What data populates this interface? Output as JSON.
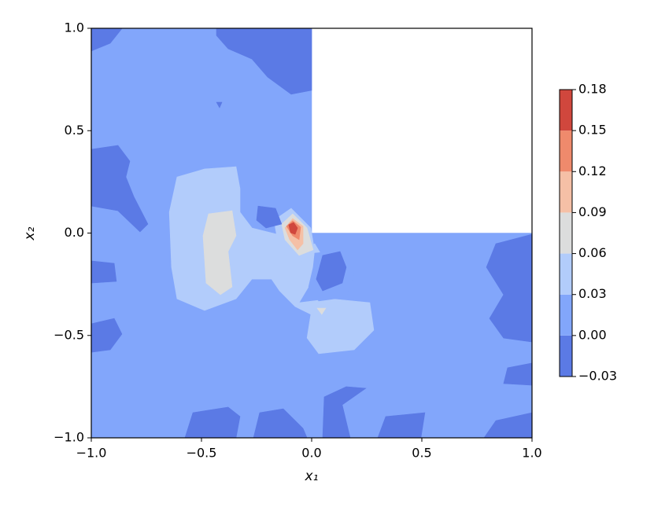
{
  "chart_data": {
    "type": "contour",
    "xlabel": "x₁",
    "ylabel": "x₂",
    "xlim": [
      -1,
      1
    ],
    "ylim": [
      -1,
      1
    ],
    "xticks": [
      {
        "value": -1,
        "label": "−1.0"
      },
      {
        "value": -0.5,
        "label": "−0.5"
      },
      {
        "value": 0,
        "label": "0.0"
      },
      0.5,
      {
        "value": 1,
        "label": "1.0"
      }
    ],
    "yticks": [
      {
        "value": -1,
        "label": "−1.0"
      },
      {
        "value": -0.5,
        "label": "−0.5"
      },
      {
        "value": 0,
        "label": "0.0"
      },
      0.5,
      {
        "value": 1,
        "label": "1.0"
      }
    ],
    "colorbar": {
      "ticks": [
        {
          "value": -0.03,
          "label": "−0.03"
        },
        {
          "value": 0,
          "label": "0.00"
        },
        0.03,
        0.06,
        0.09,
        0.12,
        0.15,
        0.18
      ],
      "colors": [
        "#5b7ae5",
        "#82a6fb",
        "#b2ccfb",
        "#dcdddd",
        "#f5c0a6",
        "#ef8a6c",
        "#d0473d"
      ]
    },
    "regions": [
      {
        "level": 0,
        "points": [
          [
            -1,
            -1
          ],
          [
            1,
            -1
          ],
          [
            1,
            0
          ],
          [
            0,
            0
          ],
          [
            0,
            1
          ],
          [
            -1,
            1
          ]
        ]
      },
      {
        "level": 0.03,
        "points": [
          [
            -0.611,
            0.274
          ],
          [
            -0.486,
            0.313
          ],
          [
            -0.343,
            0.324
          ],
          [
            -0.325,
            0.217
          ],
          [
            -0.325,
            0.102
          ],
          [
            -0.271,
            0.025
          ],
          [
            -0.129,
            -0.013
          ],
          [
            -0.039,
            -0.09
          ],
          [
            0.014,
            -0.052
          ],
          [
            0.068,
            -0.148
          ],
          [
            -0.004,
            -0.244
          ],
          [
            -0.057,
            -0.34
          ],
          [
            0.086,
            -0.321
          ],
          [
            0.264,
            -0.34
          ],
          [
            0.282,
            -0.474
          ],
          [
            0.193,
            -0.57
          ],
          [
            0.032,
            -0.589
          ],
          [
            -0.021,
            -0.512
          ],
          [
            -0.004,
            -0.397
          ],
          [
            -0.075,
            -0.359
          ],
          [
            -0.146,
            -0.282
          ],
          [
            -0.182,
            -0.225
          ],
          [
            -0.271,
            -0.225
          ],
          [
            -0.343,
            -0.321
          ],
          [
            -0.486,
            -0.378
          ],
          [
            -0.611,
            -0.321
          ],
          [
            -0.636,
            -0.167
          ],
          [
            -0.646,
            0.102
          ]
        ]
      },
      {
        "level": 0.03,
        "points": [
          [
            -0.171,
            0.063
          ],
          [
            -0.093,
            0.121
          ],
          [
            -0.004,
            0.025
          ],
          [
            0.014,
            -0.09
          ],
          [
            -0.057,
            -0.148
          ],
          [
            -0.146,
            -0.09
          ]
        ]
      },
      {
        "level": 0,
        "points": [
          [
            0.014,
            -0.098
          ],
          [
            0.157,
            -0.082
          ],
          [
            0.193,
            -0.205
          ],
          [
            0.157,
            -0.313
          ],
          [
            0.032,
            -0.332
          ],
          [
            -0.014,
            -0.263
          ],
          [
            0.007,
            -0.167
          ]
        ]
      },
      {
        "level": 0.06,
        "points": [
          [
            -0.468,
            0.094
          ],
          [
            -0.361,
            0.109
          ],
          [
            -0.343,
            -0.013
          ],
          [
            -0.379,
            -0.09
          ],
          [
            -0.361,
            -0.263
          ],
          [
            -0.414,
            -0.301
          ],
          [
            -0.479,
            -0.244
          ],
          [
            -0.493,
            -0.013
          ]
        ]
      },
      {
        "level": 0.06,
        "points": [
          [
            -0.136,
            0.044
          ],
          [
            -0.086,
            0.094
          ],
          [
            -0.021,
            0.025
          ],
          [
            0.007,
            -0.082
          ],
          [
            -0.057,
            -0.109
          ],
          [
            -0.121,
            -0.032
          ]
        ]
      },
      {
        "level": 0.06,
        "points": [
          [
            0.025,
            -0.367
          ],
          [
            0.064,
            -0.367
          ],
          [
            0.046,
            -0.397
          ]
        ]
      },
      {
        "level": 0.09,
        "points": [
          [
            -0.121,
            0.025
          ],
          [
            -0.086,
            0.071
          ],
          [
            -0.039,
            0.033
          ],
          [
            -0.039,
            -0.052
          ],
          [
            -0.064,
            -0.082
          ],
          [
            -0.1,
            -0.032
          ]
        ]
      },
      {
        "level": 0.12,
        "points": [
          [
            -0.114,
            0.033
          ],
          [
            -0.086,
            0.06
          ],
          [
            -0.05,
            0.029
          ],
          [
            -0.057,
            -0.032
          ],
          [
            -0.086,
            -0.013
          ]
        ]
      },
      {
        "level": 0.15,
        "points": [
          [
            -0.104,
            0.04
          ],
          [
            -0.082,
            0.052
          ],
          [
            -0.064,
            0.025
          ],
          [
            -0.075,
            -0.006
          ],
          [
            -0.096,
            0.002
          ]
        ]
      },
      {
        "level": -0.03,
        "points": [
          [
            -1,
            1
          ],
          [
            -0.86,
            1
          ],
          [
            -0.914,
            0.927
          ],
          [
            -1,
            0.889
          ]
        ]
      },
      {
        "level": -0.03,
        "points": [
          [
            -0.432,
            1
          ],
          [
            0,
            1
          ],
          [
            0,
            0.697
          ],
          [
            -0.093,
            0.678
          ],
          [
            -0.2,
            0.762
          ],
          [
            -0.271,
            0.85
          ],
          [
            -0.379,
            0.9
          ],
          [
            -0.432,
            0.965
          ]
        ]
      },
      {
        "level": -0.03,
        "points": [
          [
            -0.432,
            0.639
          ],
          [
            -0.407,
            0.639
          ],
          [
            -0.418,
            0.612
          ]
        ]
      },
      {
        "level": -0.03,
        "points": [
          [
            -1,
            0.409
          ],
          [
            -0.879,
            0.428
          ],
          [
            -0.825,
            0.351
          ],
          [
            -0.843,
            0.274
          ],
          [
            -0.807,
            0.178
          ],
          [
            -0.743,
            0.044
          ],
          [
            -0.779,
            0.006
          ],
          [
            -0.879,
            0.109
          ],
          [
            -1,
            0.132
          ]
        ]
      },
      {
        "level": -0.03,
        "points": [
          [
            -1,
            -0.136
          ],
          [
            -0.896,
            -0.148
          ],
          [
            -0.886,
            -0.236
          ],
          [
            -1,
            -0.244
          ]
        ]
      },
      {
        "level": -0.03,
        "points": [
          [
            -1,
            -0.443
          ],
          [
            -0.896,
            -0.417
          ],
          [
            -0.861,
            -0.493
          ],
          [
            -0.914,
            -0.57
          ],
          [
            -1,
            -0.582
          ]
        ]
      },
      {
        "level": -0.03,
        "points": [
          [
            -0.243,
            0.132
          ],
          [
            -0.164,
            0.121
          ],
          [
            -0.136,
            0.044
          ],
          [
            -0.207,
            0.025
          ],
          [
            -0.25,
            0.063
          ]
        ]
      },
      {
        "level": -0.03,
        "points": [
          [
            0.05,
            -0.109
          ],
          [
            0.129,
            -0.09
          ],
          [
            0.157,
            -0.167
          ],
          [
            0.139,
            -0.244
          ],
          [
            0.05,
            -0.282
          ],
          [
            0.021,
            -0.225
          ]
        ]
      },
      {
        "level": -0.03,
        "points": [
          [
            1,
            -0.006
          ],
          [
            1,
            -0.532
          ],
          [
            0.871,
            -0.513
          ],
          [
            0.807,
            -0.417
          ],
          [
            0.871,
            -0.301
          ],
          [
            0.793,
            -0.167
          ],
          [
            0.836,
            -0.052
          ]
        ]
      },
      {
        "level": -0.03,
        "points": [
          [
            1,
            -0.635
          ],
          [
            1,
            -0.743
          ],
          [
            0.871,
            -0.735
          ],
          [
            0.889,
            -0.658
          ]
        ]
      },
      {
        "level": -0.03,
        "points": [
          [
            -0.575,
            -1
          ],
          [
            -0.539,
            -0.877
          ],
          [
            -0.379,
            -0.85
          ],
          [
            -0.325,
            -0.896
          ],
          [
            -0.343,
            -1
          ]
        ]
      },
      {
        "level": -0.03,
        "points": [
          [
            -0.264,
            -1
          ],
          [
            -0.236,
            -0.877
          ],
          [
            -0.129,
            -0.858
          ],
          [
            -0.039,
            -0.954
          ],
          [
            -0.021,
            -1
          ]
        ]
      },
      {
        "level": -0.03,
        "points": [
          [
            0.05,
            -1
          ],
          [
            0.057,
            -0.8
          ],
          [
            0.157,
            -0.75
          ],
          [
            0.246,
            -0.758
          ],
          [
            0.139,
            -0.839
          ],
          [
            0.175,
            -1
          ]
        ]
      },
      {
        "level": -0.03,
        "points": [
          [
            0.3,
            -1
          ],
          [
            0.336,
            -0.896
          ],
          [
            0.514,
            -0.877
          ],
          [
            0.496,
            -1
          ]
        ]
      },
      {
        "level": -0.03,
        "points": [
          [
            0.782,
            -1
          ],
          [
            0.836,
            -0.916
          ],
          [
            1,
            -0.877
          ],
          [
            1,
            -1
          ]
        ]
      }
    ]
  }
}
